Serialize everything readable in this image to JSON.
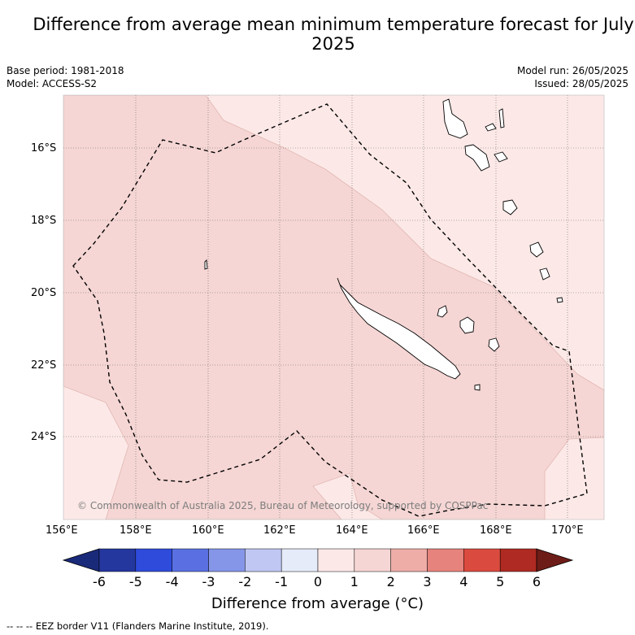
{
  "title": "Difference from average mean minimum temperature forecast for July 2025",
  "base_period": "Base period: 1981-2018",
  "model": "Model: ACCESS-S2",
  "model_run": "Model run: 26/05/2025",
  "issued": "Issued: 28/05/2025",
  "copyright": "© Commonwealth of Australia 2025, Bureau of Meteorology, supported by COSPPac",
  "lon_labels": [
    "156°E",
    "158°E",
    "160°E",
    "162°E",
    "164°E",
    "166°E",
    "168°E",
    "170°E"
  ],
  "lat_labels": [
    "16°S",
    "18°S",
    "20°S",
    "22°S",
    "24°S"
  ],
  "colorbar": {
    "title": "Difference from average (°C)",
    "ticks": [
      "-6",
      "-5",
      "-4",
      "-3",
      "-2",
      "-1",
      "0",
      "1",
      "2",
      "3",
      "4",
      "5",
      "6"
    ],
    "colors": [
      "#24379f",
      "#2f4bdc",
      "#5a70e2",
      "#8596e9",
      "#c0c7f3",
      "#e6ebf9",
      "#fce9e7",
      "#f5d6d4",
      "#efada8",
      "#e6837c",
      "#db4a3f",
      "#ae2a22"
    ],
    "extend_low": "#1a2a7a",
    "extend_high": "#6e1c17"
  },
  "legend_note": "-- -- -- EEZ border V11 (Flanders Marine Institute, 2019).",
  "map_colors": {
    "light": "#fce9e7",
    "mid": "#f5d6d4"
  }
}
